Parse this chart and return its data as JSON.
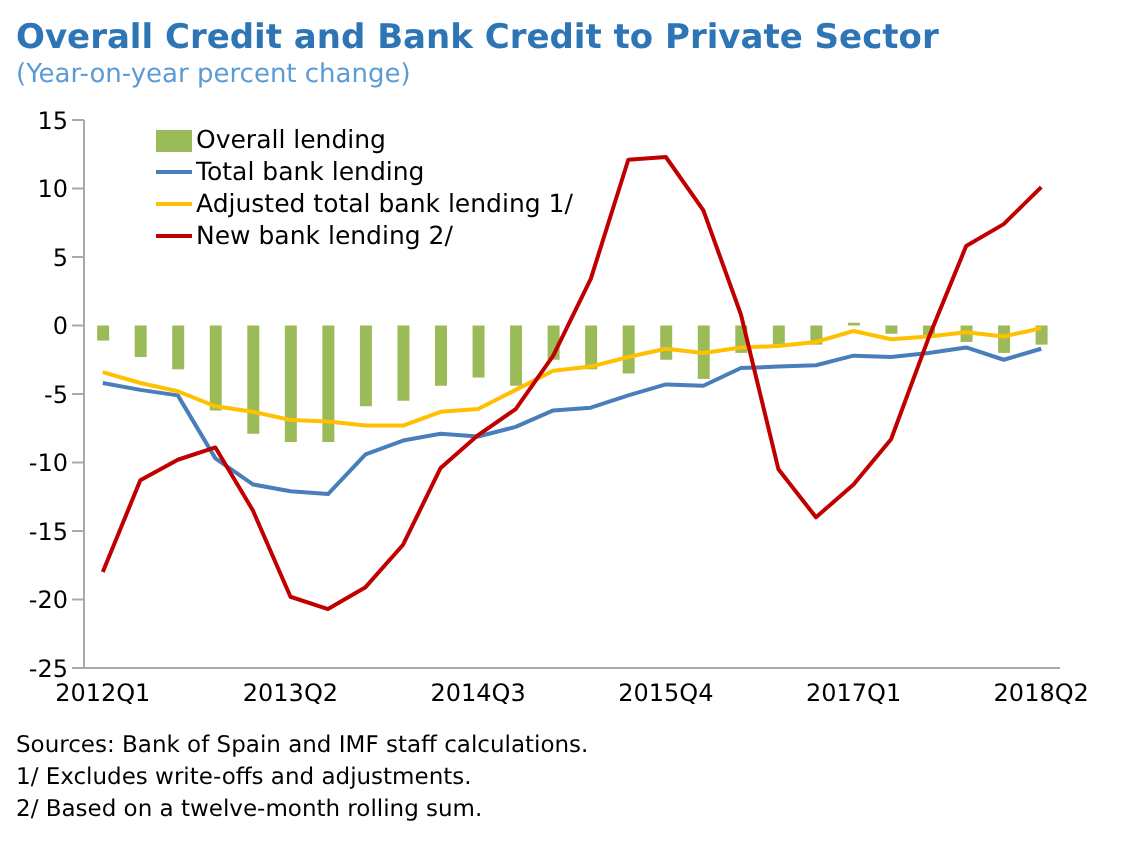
{
  "chart_data": {
    "type": "bar",
    "title": "Overall Credit and Bank Credit to Private Sector",
    "subtitle": "(Year-on-year percent change)",
    "categories": [
      "2012Q1",
      null,
      null,
      null,
      null,
      "2013Q2",
      null,
      null,
      null,
      null,
      "2014Q3",
      null,
      null,
      null,
      null,
      "2015Q4",
      null,
      null,
      null,
      null,
      "2017Q1",
      null,
      null,
      null,
      null,
      "2018Q2"
    ],
    "series": [
      {
        "name": "Overall lending",
        "color": "#9bbb59",
        "values": [
          -1.1,
          -2.3,
          -3.2,
          -6.2,
          -7.9,
          -8.5,
          -8.5,
          -5.9,
          -5.5,
          -4.4,
          -3.8,
          -4.4,
          -2.5,
          -3.2,
          -3.5,
          -2.5,
          -3.9,
          -2.0,
          -1.4,
          -1.4,
          0.2,
          -0.6,
          -0.9,
          -1.2,
          -2.0,
          -1.4
        ]
      },
      {
        "name": "Total bank lending",
        "type": "line",
        "color": "#4a7ebb",
        "values": [
          -4.2,
          -4.7,
          -5.1,
          -9.7,
          -11.6,
          -12.1,
          -12.3,
          -9.4,
          -8.4,
          -7.9,
          -8.1,
          -7.4,
          -6.2,
          -6.0,
          -5.1,
          -4.3,
          -4.4,
          -3.1,
          -3.0,
          -2.9,
          -2.2,
          -2.3,
          -2.0,
          -1.6,
          -2.5,
          -1.7
        ]
      },
      {
        "name": "Adjusted total bank lending 1/",
        "type": "line",
        "color": "#ffc000",
        "values": [
          -3.4,
          -4.2,
          -4.8,
          -5.9,
          -6.3,
          -6.9,
          -7.0,
          -7.3,
          -7.3,
          -6.3,
          -6.1,
          -4.7,
          -3.3,
          -3.0,
          -2.3,
          -1.7,
          -2.0,
          -1.6,
          -1.5,
          -1.2,
          -0.4,
          -1.0,
          -0.8,
          -0.5,
          -0.8,
          -0.2
        ]
      },
      {
        "name": "New bank lending 2/",
        "type": "line",
        "color": "#c00000",
        "values": [
          -18.0,
          -11.3,
          -9.8,
          -8.9,
          -13.5,
          -19.8,
          -20.7,
          -19.1,
          -16.0,
          -10.4,
          -8.0,
          -6.1,
          -2.2,
          3.4,
          12.1,
          12.3,
          8.4,
          0.8,
          -10.5,
          -14.0,
          -11.6,
          -8.3,
          -0.9,
          5.8,
          7.4,
          10.1
        ]
      }
    ],
    "ylim": [
      -25,
      15
    ],
    "yticks": [
      -25,
      -20,
      -15,
      -10,
      -5,
      0,
      5,
      10,
      15
    ],
    "grid": false,
    "legend": "top left",
    "marker": "none",
    "line_style": "solid",
    "annotations": [
      "Sources: Bank of Spain and IMF staff calculations.",
      "1/ Excludes write-offs and adjustments.",
      "2/ Based on a twelve-month rolling sum."
    ]
  }
}
